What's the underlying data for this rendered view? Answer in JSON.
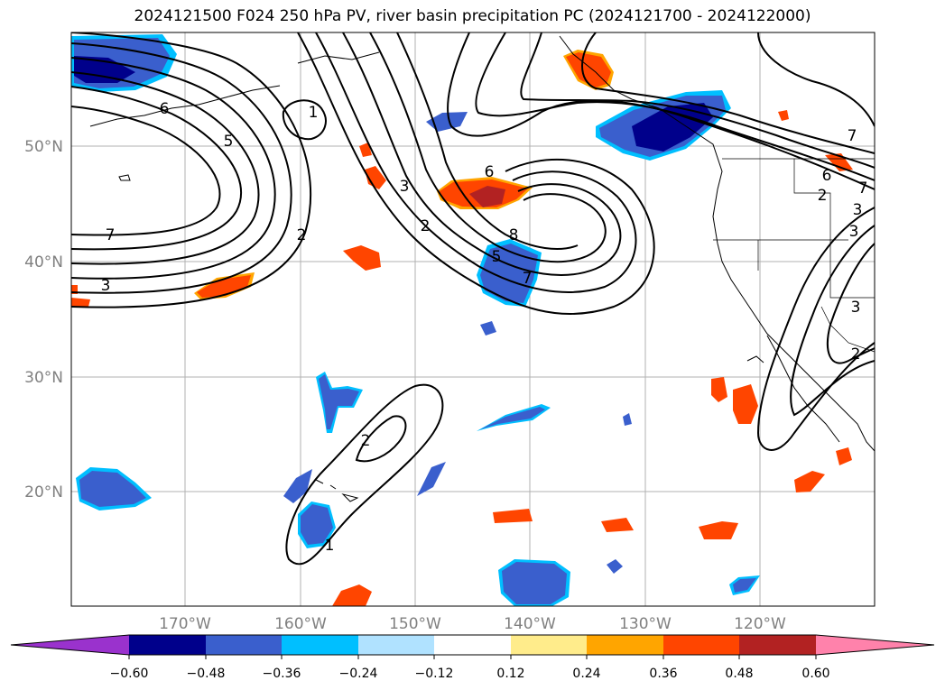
{
  "title": "2024121500 F024 250 hPa PV, river basin precipitation PC (2024121700 - 2024122000)",
  "lat_labels": [
    "50°N",
    "40°N",
    "30°N",
    "20°N"
  ],
  "lon_labels": [
    "170°W",
    "160°W",
    "150°W",
    "140°W",
    "130°W",
    "120°W"
  ],
  "contour_labels": [
    {
      "text": "6"
    },
    {
      "text": "5"
    },
    {
      "text": "1"
    },
    {
      "text": "7"
    },
    {
      "text": "3"
    },
    {
      "text": "2"
    },
    {
      "text": "3"
    },
    {
      "text": "2"
    },
    {
      "text": "6"
    },
    {
      "text": "8"
    },
    {
      "text": "5"
    },
    {
      "text": "7"
    },
    {
      "text": "2"
    },
    {
      "text": "1"
    },
    {
      "text": "7"
    },
    {
      "text": "6"
    },
    {
      "text": "2"
    },
    {
      "text": "7"
    },
    {
      "text": "3"
    },
    {
      "text": "3"
    },
    {
      "text": "3"
    },
    {
      "text": "2"
    }
  ],
  "colorbar": {
    "ticks": [
      "−0.60",
      "−0.48",
      "−0.36",
      "−0.24",
      "−0.12",
      "0.12",
      "0.24",
      "0.36",
      "0.48",
      "0.60"
    ],
    "colors": [
      "#9a32cd",
      "#00008b",
      "#3a5fcd",
      "#00bfff",
      "#b0e2ff",
      "#ffffff",
      "#ffec8b",
      "#ffa500",
      "#ff4500",
      "#b22222",
      "#ff82ab"
    ]
  }
}
